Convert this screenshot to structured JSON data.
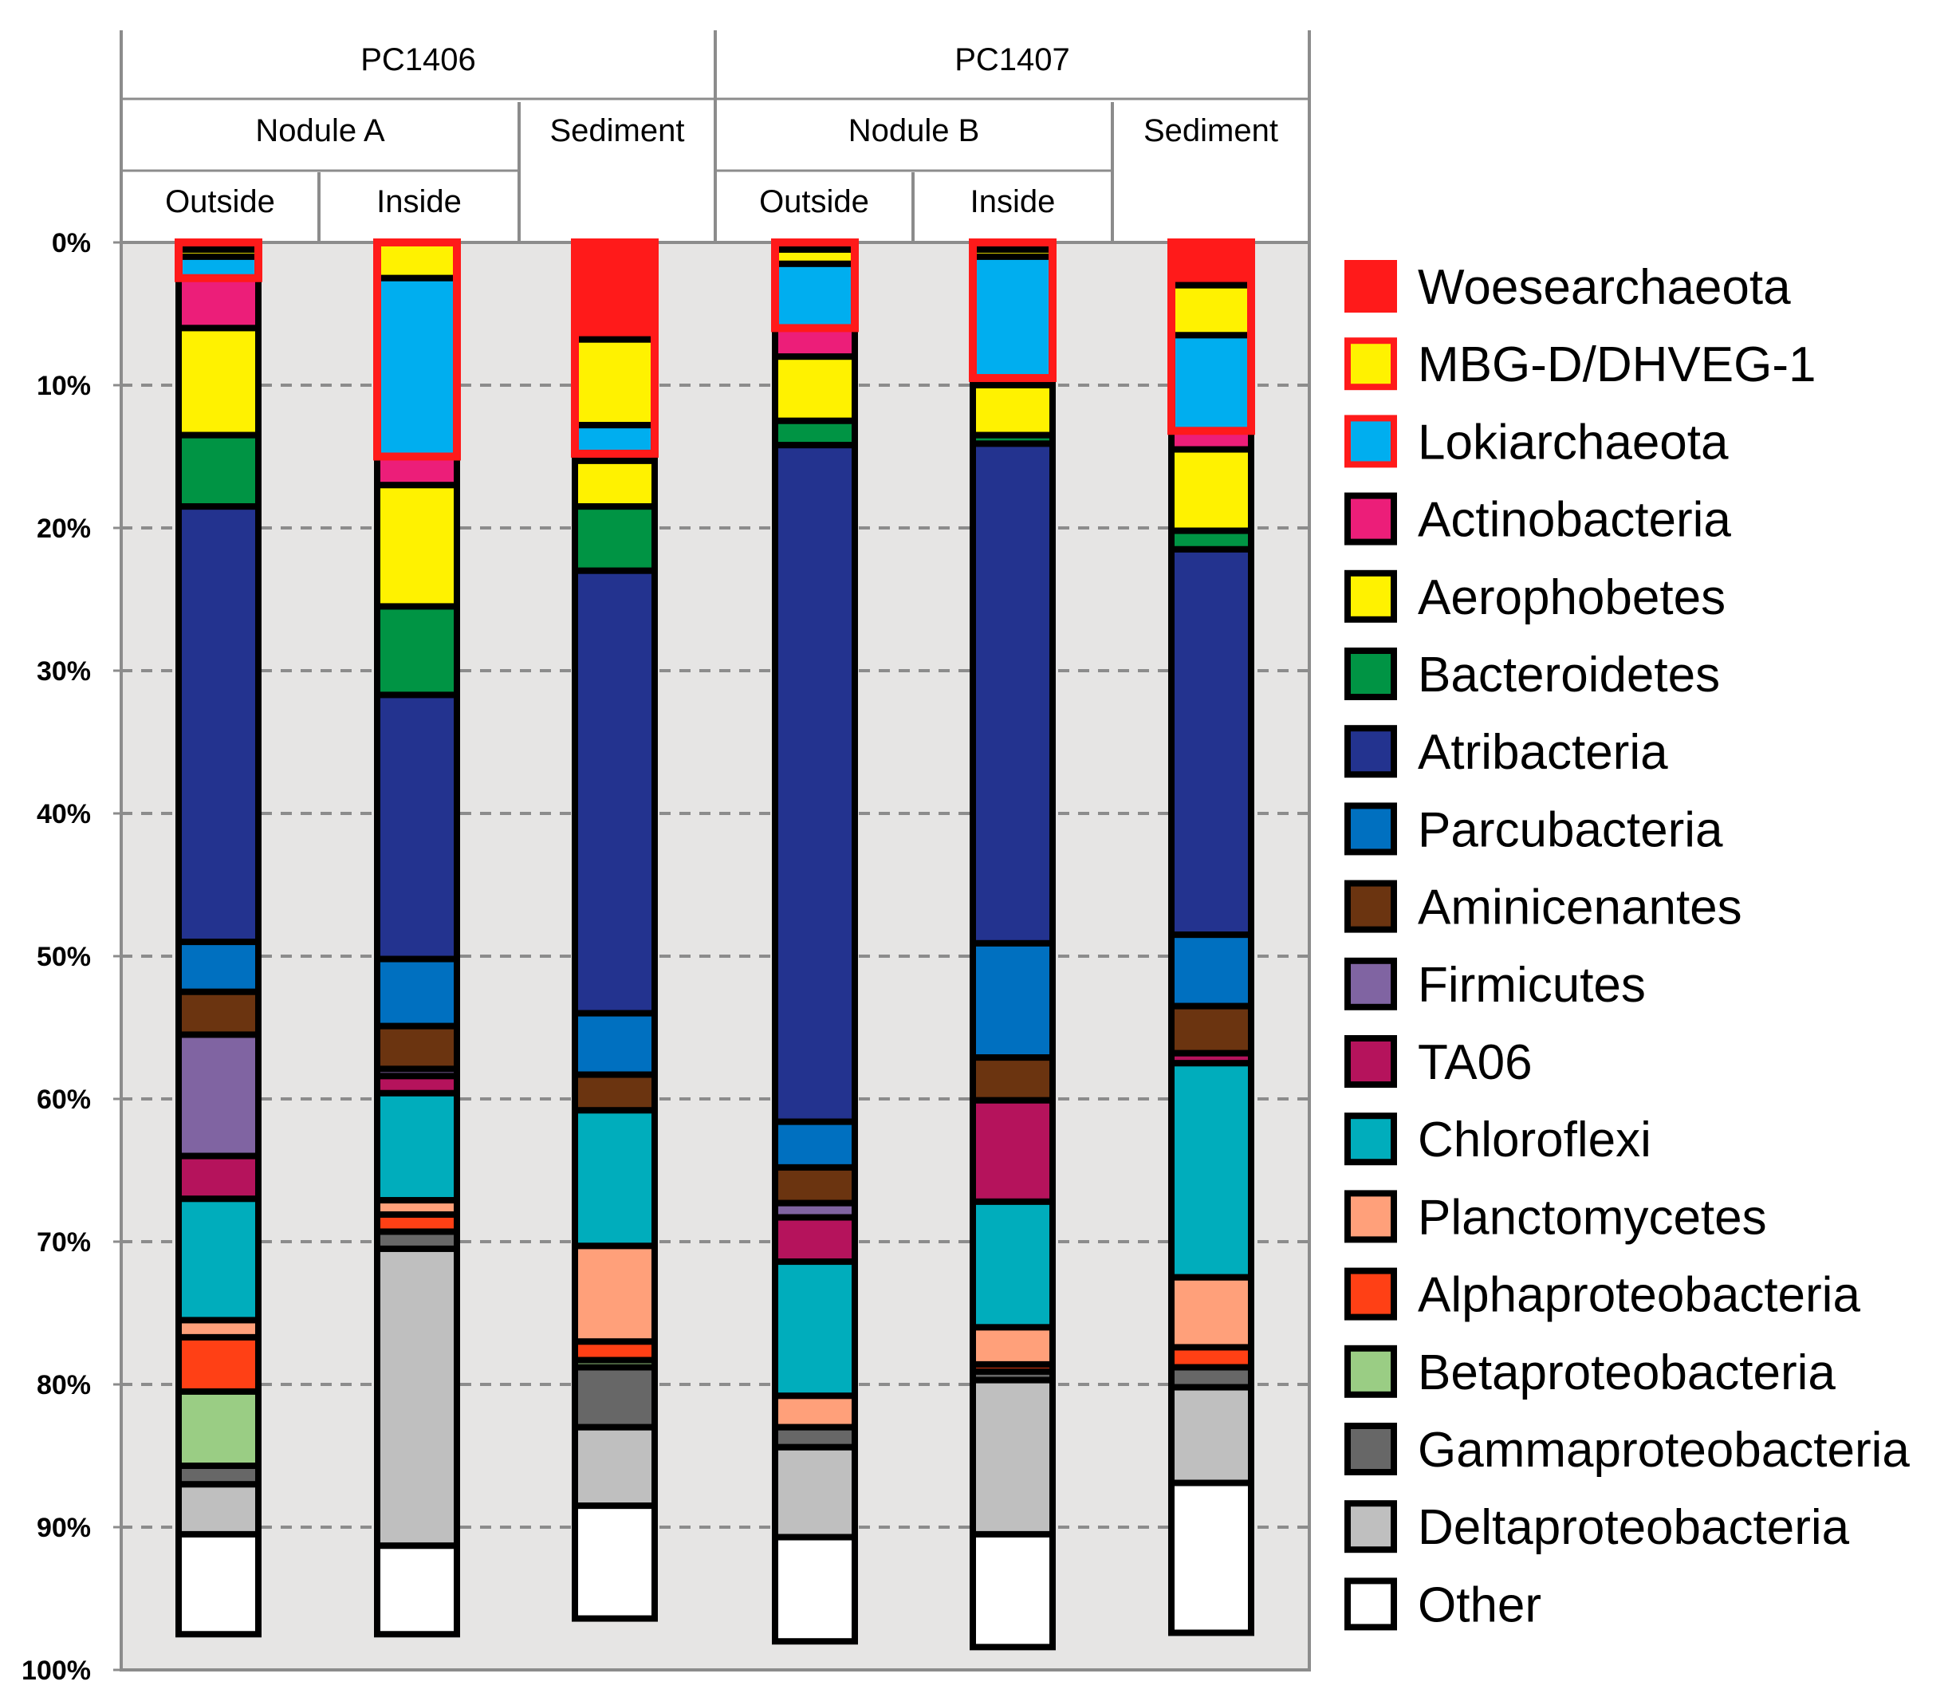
{
  "chart_data": {
    "type": "bar",
    "orientation": "vertical-stacked-100",
    "ylabel": "",
    "ylim": [
      0,
      100
    ],
    "yticks": [
      "0%",
      "10%",
      "20%",
      "30%",
      "40%",
      "50%",
      "60%",
      "70%",
      "80%",
      "90%",
      "100%"
    ],
    "y_direction": "top-to-bottom",
    "grid": true,
    "legend_position": "right",
    "header": {
      "cores": [
        {
          "name": "PC1406",
          "groups": [
            {
              "name": "Nodule A",
              "subs": [
                "Outside",
                "Inside"
              ]
            },
            {
              "name": "Sediment",
              "subs": [
                ""
              ]
            }
          ]
        },
        {
          "name": "PC1407",
          "groups": [
            {
              "name": "Nodule B",
              "subs": [
                "Outside",
                "Inside"
              ]
            },
            {
              "name": "Sediment",
              "subs": [
                ""
              ]
            }
          ]
        }
      ]
    },
    "categories": [
      "PC1406 Nodule A Outside",
      "PC1406 Nodule A Inside",
      "PC1406 Sediment",
      "PC1407 Nodule B Outside",
      "PC1407 Nodule B Inside",
      "PC1407 Sediment"
    ],
    "series": [
      {
        "name": "Woesearchaeota",
        "color": "#FF1A1A",
        "highlight": true,
        "values": [
          0.5,
          0,
          6.8,
          0.5,
          0.5,
          3.0
        ]
      },
      {
        "name": "MBG-D/DHVEG-1",
        "color": "#FFF200",
        "highlight": true,
        "values": [
          0.5,
          2.5,
          6.0,
          1.0,
          0.5,
          3.5
        ]
      },
      {
        "name": "Lokiarchaeota",
        "color": "#00AEEF",
        "highlight": true,
        "values": [
          1.5,
          12.5,
          2.0,
          4.5,
          8.5,
          6.7
        ]
      },
      {
        "name": "Actinobacteria",
        "color": "#EC1E79",
        "highlight": false,
        "values": [
          3.5,
          2.0,
          0.5,
          2.0,
          0.5,
          1.3
        ]
      },
      {
        "name": "Aerophobetes",
        "color": "#FFF200",
        "highlight": false,
        "values": [
          7.5,
          8.5,
          3.2,
          4.5,
          3.5,
          5.7
        ]
      },
      {
        "name": "Bacteroidetes",
        "color": "#009444",
        "highlight": false,
        "values": [
          5.0,
          6.2,
          4.5,
          1.7,
          0.6,
          1.3
        ]
      },
      {
        "name": "Atribacteria",
        "color": "#23338F",
        "highlight": false,
        "values": [
          30.5,
          18.5,
          31.0,
          47.4,
          35.0,
          27.0
        ]
      },
      {
        "name": "Parcubacteria",
        "color": "#0070C0",
        "highlight": false,
        "values": [
          3.5,
          4.7,
          4.3,
          3.2,
          8.0,
          5.0
        ]
      },
      {
        "name": "Aminicenantes",
        "color": "#6B3410",
        "highlight": false,
        "values": [
          3.0,
          3.0,
          2.5,
          2.5,
          3.0,
          3.3
        ]
      },
      {
        "name": "Firmicutes",
        "color": "#8064A2",
        "highlight": false,
        "values": [
          8.5,
          0.5,
          0,
          1.0,
          0,
          0
        ]
      },
      {
        "name": "TA06",
        "color": "#B5135C",
        "highlight": false,
        "values": [
          3.0,
          1.2,
          0,
          3.1,
          7.1,
          0.7
        ]
      },
      {
        "name": "Chloroflexi",
        "color": "#00ADBC",
        "highlight": false,
        "values": [
          8.5,
          7.5,
          9.5,
          9.4,
          8.8,
          15.0
        ]
      },
      {
        "name": "Planctomycetes",
        "color": "#FFA07A",
        "highlight": false,
        "values": [
          1.2,
          1.0,
          6.7,
          2.2,
          2.6,
          4.9
        ]
      },
      {
        "name": "Alphaproteobacteria",
        "color": "#FF4015",
        "highlight": false,
        "values": [
          3.8,
          1.2,
          1.3,
          0,
          0.5,
          1.4
        ]
      },
      {
        "name": "Betaproteobacteria",
        "color": "#9ACD84",
        "highlight": false,
        "values": [
          5.2,
          0,
          0.5,
          0,
          0,
          0
        ]
      },
      {
        "name": "Gammaproteobacteria",
        "color": "#676767",
        "highlight": false,
        "values": [
          1.3,
          1.2,
          4.2,
          1.4,
          0.6,
          1.4
        ]
      },
      {
        "name": "Deltaproteobacteria",
        "color": "#BFBFBF",
        "highlight": false,
        "values": [
          3.5,
          20.8,
          5.5,
          6.3,
          10.8,
          6.7
        ]
      },
      {
        "name": "Other",
        "color": "#FFFFFF",
        "highlight": false,
        "values": [
          7.0,
          6.2,
          7.9,
          7.3,
          7.9,
          10.5
        ]
      }
    ]
  }
}
